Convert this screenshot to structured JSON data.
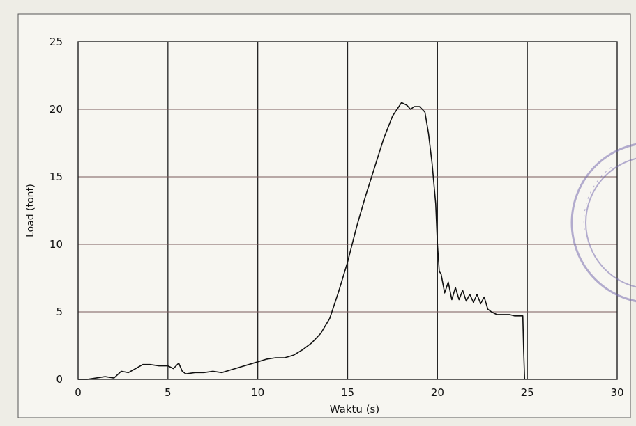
{
  "chart_data": {
    "type": "line",
    "title": "",
    "xlabel": "Waktu (s)",
    "ylabel": "Load (tonf)",
    "xlim": [
      0,
      30
    ],
    "ylim": [
      0,
      25
    ],
    "xticks": [
      "0",
      "5",
      "10",
      "15",
      "20",
      "25",
      "30"
    ],
    "yticks": [
      "0",
      "5",
      "10",
      "15",
      "20",
      "25"
    ],
    "grid": true,
    "legend": "none",
    "series": [
      {
        "x": [
          0,
          0.5,
          1,
          1.5,
          2,
          2.4,
          2.8,
          3.2,
          3.6,
          4,
          4.5,
          5,
          5.3,
          5.6,
          5.8,
          6,
          6.5,
          7,
          7.5,
          8,
          8.5,
          9,
          9.5,
          10,
          10.5,
          11,
          11.5,
          12,
          12.5,
          13,
          13.5,
          14,
          14.5,
          15,
          15.5,
          16,
          16.5,
          17,
          17.5,
          18,
          18.3,
          18.5,
          18.7,
          19,
          19.3,
          19.5,
          19.7,
          19.9,
          20.0,
          20.1,
          20.2,
          20.4,
          20.6,
          20.8,
          21,
          21.2,
          21.4,
          21.6,
          21.8,
          22,
          22.2,
          22.4,
          22.6,
          22.8,
          23,
          23.3,
          23.6,
          24,
          24.3,
          24.6,
          24.75,
          24.8,
          24.85
        ],
        "y": [
          0,
          0,
          0.1,
          0.2,
          0.1,
          0.6,
          0.5,
          0.8,
          1.1,
          1.1,
          1.0,
          1.0,
          0.8,
          1.2,
          0.6,
          0.4,
          0.5,
          0.5,
          0.6,
          0.5,
          0.7,
          0.9,
          1.1,
          1.3,
          1.5,
          1.6,
          1.6,
          1.8,
          2.2,
          2.7,
          3.4,
          4.5,
          6.5,
          8.7,
          11.3,
          13.6,
          15.7,
          17.8,
          19.5,
          20.5,
          20.3,
          20.0,
          20.2,
          20.2,
          19.8,
          18.2,
          16.0,
          13.0,
          10.0,
          8.0,
          7.8,
          6.4,
          7.2,
          5.9,
          6.8,
          5.9,
          6.6,
          5.8,
          6.3,
          5.7,
          6.3,
          5.6,
          6.1,
          5.2,
          5.0,
          4.8,
          4.8,
          4.8,
          4.7,
          4.7,
          4.7,
          2.0,
          0
        ]
      }
    ]
  }
}
